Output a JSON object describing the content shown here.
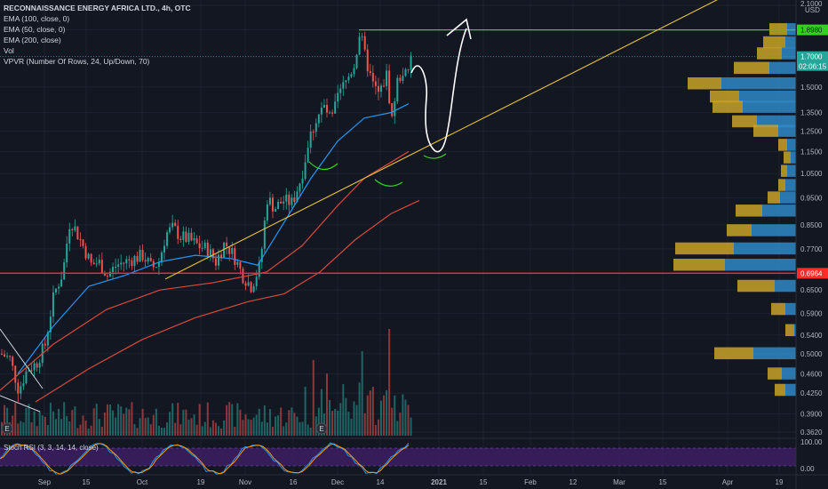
{
  "legend": {
    "title": "RECONNAISSANCE ENERGY AFRICA LTD., 4h, OTC",
    "lines": [
      "EMA (100, close, 0)",
      "EMA (50, close, 0)",
      "EMA (200, close)",
      "Vol",
      "VPVR (Number Of Rows, 24, Up/Down, 70)"
    ]
  },
  "price_axis": {
    "currency_top": "2.1000",
    "currency": "USD",
    "ticks": [
      "2.1000",
      "1.9000",
      "1.7000",
      "1.5000",
      "1.3500",
      "1.2500",
      "1.1500",
      "1.0500",
      "0.9500",
      "0.8500",
      "0.7700",
      "0.6964",
      "0.6500",
      "0.5900",
      "0.5400",
      "0.5000",
      "0.4600",
      "0.4250",
      "0.3900",
      "0.3620"
    ],
    "tag_green": "1.8980",
    "tag_teal": "1.7000",
    "tag_teal_timer": "02:06:15",
    "tag_red": "0.6964"
  },
  "rsi": {
    "label": "Stoch RSI (3, 3, 14, 14, close)",
    "ticks": [
      "100.00",
      "0.00"
    ]
  },
  "time_axis": [
    "Sep",
    "15",
    "Oct",
    "19",
    "Nov",
    "16",
    "Dec",
    "14",
    "2021",
    "15",
    "Feb",
    "12",
    "Mar",
    "15",
    "Apr",
    "19"
  ],
  "earnings_marker": "E",
  "colors": {
    "bg": "#131722",
    "up": "#26a69a",
    "down": "#ef5350",
    "ema_blue": "#2196f3",
    "ema_red": "#d84a3a",
    "trend": "#e8c13a",
    "support": "#ff2a2a",
    "resistance": "#32d21c",
    "vp_up": "#2f88c7",
    "vp_down": "#c9a227"
  },
  "chart_data": {
    "type": "candlestick",
    "title": "RECONNAISSANCE ENERGY AFRICA LTD., 4h, OTC",
    "x_ticks": [
      "Sep",
      "15",
      "Oct",
      "19",
      "Nov",
      "16",
      "Dec",
      "14",
      "2021",
      "15",
      "Feb",
      "12",
      "Mar",
      "15",
      "Apr",
      "19"
    ],
    "price_path": [
      [
        0,
        0.5
      ],
      [
        10,
        0.49
      ],
      [
        20,
        0.43
      ],
      [
        30,
        0.47
      ],
      [
        40,
        0.48
      ],
      [
        50,
        0.52
      ],
      [
        60,
        0.64
      ],
      [
        70,
        0.7
      ],
      [
        78,
        0.87
      ],
      [
        86,
        0.82
      ],
      [
        94,
        0.77
      ],
      [
        102,
        0.72
      ],
      [
        110,
        0.73
      ],
      [
        120,
        0.69
      ],
      [
        130,
        0.72
      ],
      [
        140,
        0.73
      ],
      [
        150,
        0.74
      ],
      [
        160,
        0.75
      ],
      [
        170,
        0.71
      ],
      [
        178,
        0.73
      ],
      [
        186,
        0.82
      ],
      [
        194,
        0.84
      ],
      [
        202,
        0.81
      ],
      [
        212,
        0.8
      ],
      [
        222,
        0.78
      ],
      [
        232,
        0.77
      ],
      [
        242,
        0.73
      ],
      [
        252,
        0.79
      ],
      [
        262,
        0.75
      ],
      [
        272,
        0.69
      ],
      [
        282,
        0.66
      ],
      [
        292,
        0.72
      ],
      [
        300,
        0.95
      ],
      [
        308,
        0.91
      ],
      [
        318,
        0.94
      ],
      [
        328,
        0.93
      ],
      [
        338,
        1.03
      ],
      [
        348,
        1.22
      ],
      [
        356,
        1.33
      ],
      [
        364,
        1.38
      ],
      [
        372,
        1.3
      ],
      [
        380,
        1.45
      ],
      [
        390,
        1.55
      ],
      [
        398,
        1.65
      ],
      [
        404,
        1.88
      ],
      [
        410,
        1.7
      ],
      [
        418,
        1.52
      ],
      [
        426,
        1.45
      ],
      [
        434,
        1.58
      ],
      [
        440,
        1.31
      ],
      [
        446,
        1.53
      ],
      [
        452,
        1.6
      ],
      [
        458,
        1.56
      ],
      [
        462,
        1.71
      ]
    ],
    "ema_50": [
      [
        20,
        0.46
      ],
      [
        60,
        0.56
      ],
      [
        100,
        0.66
      ],
      [
        140,
        0.69
      ],
      [
        180,
        0.73
      ],
      [
        220,
        0.75
      ],
      [
        260,
        0.74
      ],
      [
        290,
        0.72
      ],
      [
        320,
        0.86
      ],
      [
        350,
        1.03
      ],
      [
        380,
        1.2
      ],
      [
        410,
        1.32
      ],
      [
        440,
        1.35
      ],
      [
        460,
        1.4
      ]
    ],
    "ema_100": [
      [
        0,
        0.43
      ],
      [
        60,
        0.52
      ],
      [
        120,
        0.6
      ],
      [
        180,
        0.65
      ],
      [
        240,
        0.67
      ],
      [
        300,
        0.7
      ],
      [
        340,
        0.78
      ],
      [
        380,
        0.92
      ],
      [
        410,
        1.03
      ],
      [
        440,
        1.1
      ],
      [
        460,
        1.15
      ]
    ],
    "ema_200": [
      [
        40,
        0.41
      ],
      [
        100,
        0.47
      ],
      [
        160,
        0.53
      ],
      [
        220,
        0.58
      ],
      [
        280,
        0.62
      ],
      [
        320,
        0.64
      ],
      [
        360,
        0.7
      ],
      [
        400,
        0.8
      ],
      [
        440,
        0.89
      ],
      [
        472,
        0.94
      ]
    ],
    "support_level": 0.6964,
    "resistance_level": 1.898,
    "last_price": 1.7,
    "trendline": [
      [
        186,
        0.68
      ],
      [
        820,
        2.2
      ]
    ],
    "volume_profile": [
      {
        "price": 1.9,
        "up": 20,
        "down": 10
      },
      {
        "price": 1.8,
        "up": 25,
        "down": 12
      },
      {
        "price": 1.72,
        "up": 28,
        "down": 16
      },
      {
        "price": 1.62,
        "up": 40,
        "down": 30
      },
      {
        "price": 1.52,
        "up": 38,
        "down": 84
      },
      {
        "price": 1.44,
        "up": 33,
        "down": 64
      },
      {
        "price": 1.38,
        "up": 34,
        "down": 60
      },
      {
        "price": 1.3,
        "up": 28,
        "down": 44
      },
      {
        "price": 1.25,
        "up": 28,
        "down": 20
      },
      {
        "price": 1.18,
        "up": 10,
        "down": 10
      },
      {
        "price": 1.12,
        "up": 8,
        "down": 6
      },
      {
        "price": 1.06,
        "up": 7,
        "down": 10
      },
      {
        "price": 1.0,
        "up": 8,
        "down": 12
      },
      {
        "price": 0.95,
        "up": 14,
        "down": 18
      },
      {
        "price": 0.9,
        "up": 30,
        "down": 38
      },
      {
        "price": 0.83,
        "up": 28,
        "down": 50
      },
      {
        "price": 0.77,
        "up": 66,
        "down": 70
      },
      {
        "price": 0.72,
        "up": 58,
        "down": 80
      },
      {
        "price": 0.66,
        "up": 42,
        "down": 24
      },
      {
        "price": 0.6,
        "up": 16,
        "down": 12
      },
      {
        "price": 0.55,
        "up": 10,
        "down": 2
      },
      {
        "price": 0.5,
        "up": 44,
        "down": 48
      },
      {
        "price": 0.46,
        "up": 16,
        "down": 16
      },
      {
        "price": 0.43,
        "up": 12,
        "down": 12
      }
    ],
    "ylim": [
      0.362,
      2.1
    ]
  }
}
